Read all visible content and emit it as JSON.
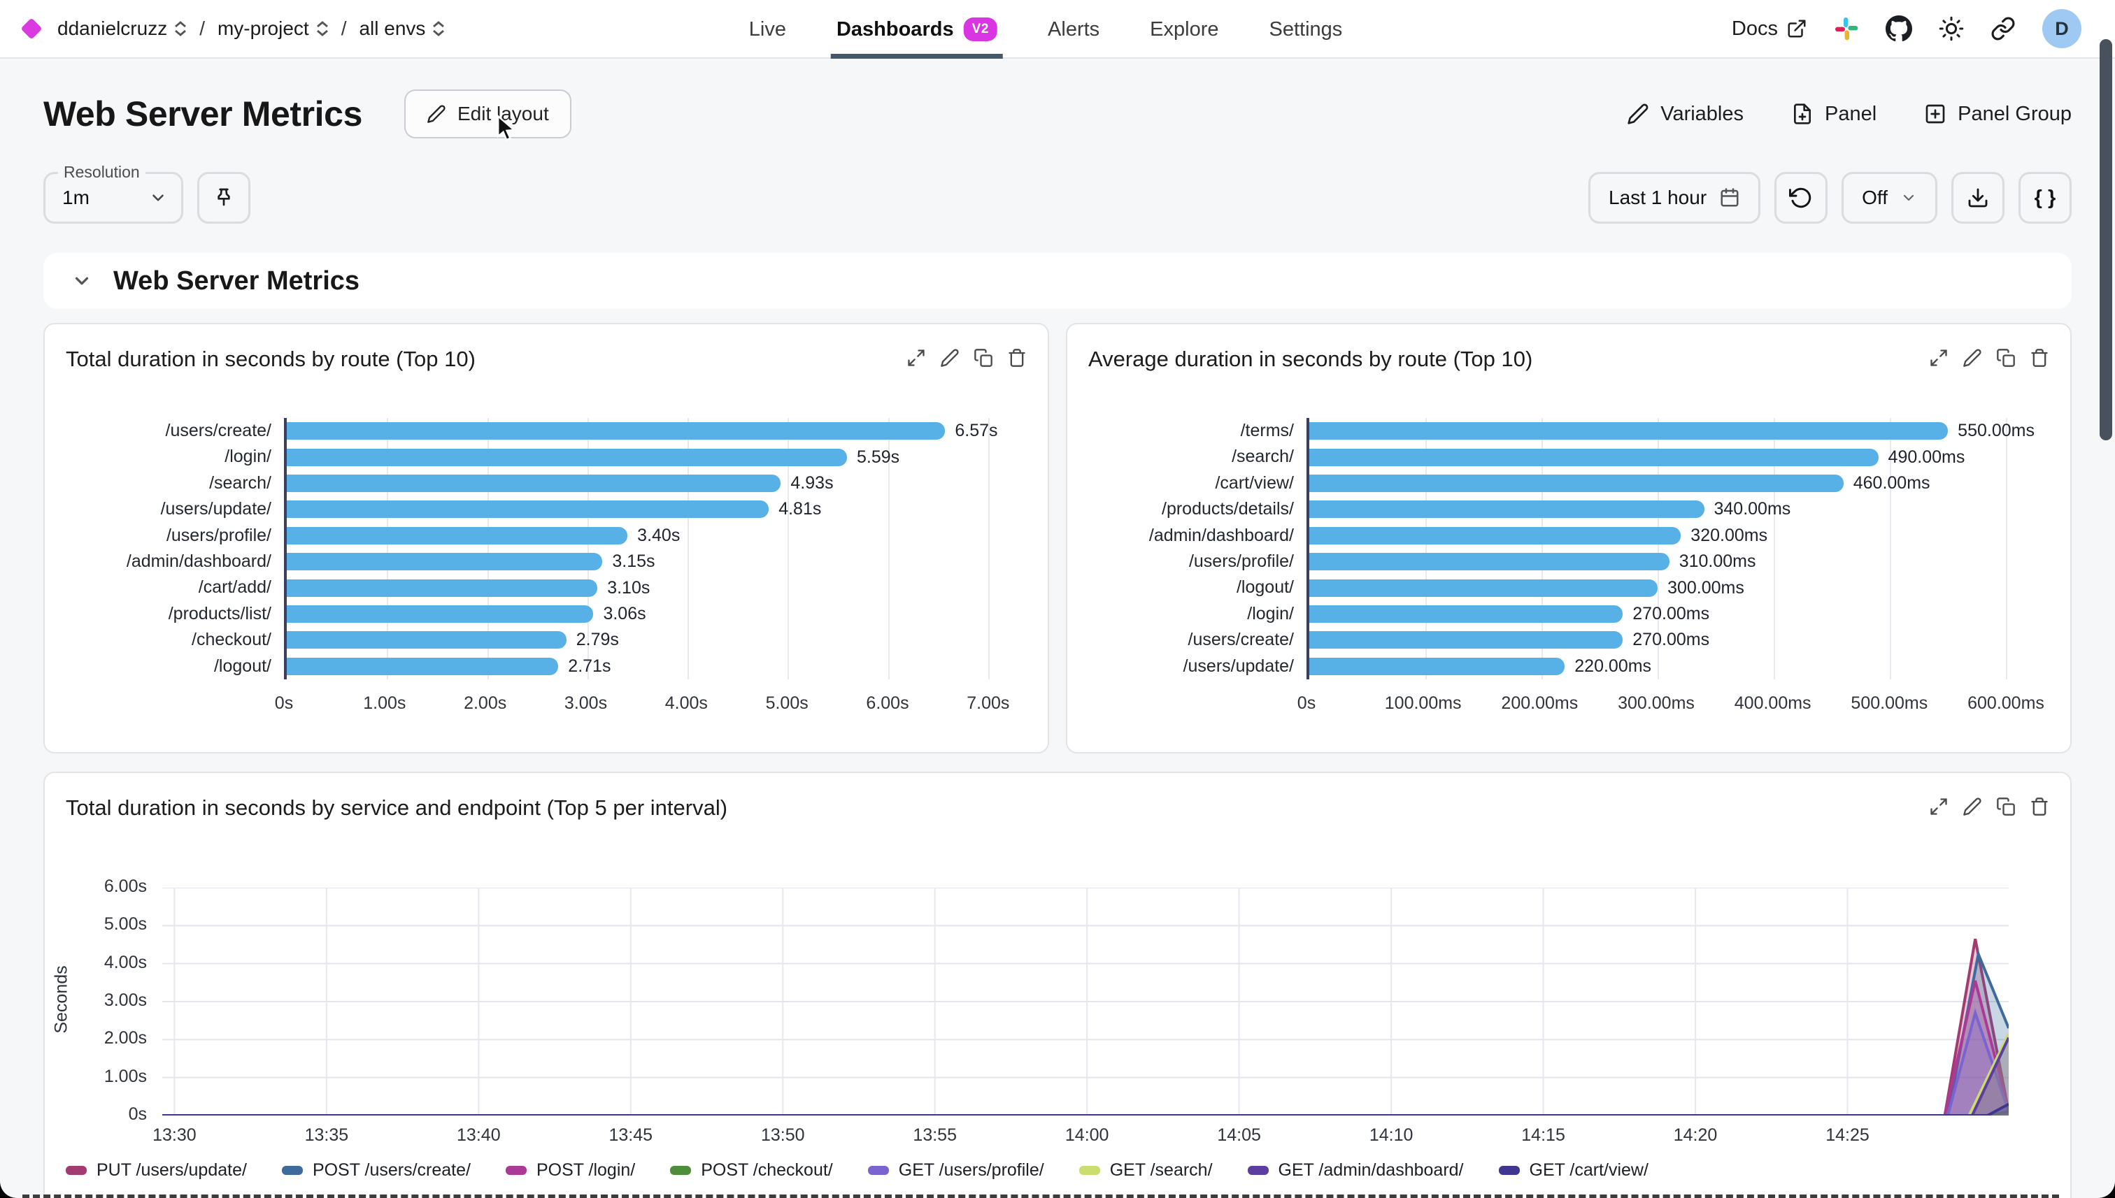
{
  "app": {
    "breadcrumb": {
      "org": "ddanielcruzz",
      "separator": "/",
      "project": "my-project",
      "environment": "all envs"
    },
    "nav": [
      {
        "label": "Live",
        "active": false
      },
      {
        "label": "Dashboards",
        "active": true,
        "badge": "V2"
      },
      {
        "label": "Alerts",
        "active": false
      },
      {
        "label": "Explore",
        "active": false
      },
      {
        "label": "Settings",
        "active": false
      }
    ],
    "topright": {
      "docs_label": "Docs",
      "icons": [
        "external-link",
        "slack",
        "github",
        "sun",
        "link"
      ],
      "avatar_initial": "D"
    }
  },
  "toolbar": {
    "title": "Web Server Metrics",
    "edit_layout": "Edit layout",
    "variables": "Variables",
    "panel": "Panel",
    "panel_group": "Panel Group"
  },
  "filters": {
    "resolution_label": "Resolution",
    "resolution_value": "1m",
    "time_range": "Last 1 hour",
    "refresh_interval": "Off",
    "code_view": "{ }"
  },
  "section": {
    "title": "Web Server Metrics"
  },
  "panel_actions": [
    "expand",
    "edit",
    "duplicate",
    "delete"
  ],
  "chart_data": [
    {
      "type": "bar",
      "orientation": "horizontal",
      "title": "Total duration in seconds by route (Top 10)",
      "categories": [
        "/users/create/",
        "/login/",
        "/search/",
        "/users/update/",
        "/users/profile/",
        "/admin/dashboard/",
        "/cart/add/",
        "/products/list/",
        "/checkout/",
        "/logout/"
      ],
      "values": [
        6.57,
        5.59,
        4.93,
        4.81,
        3.4,
        3.15,
        3.1,
        3.06,
        2.79,
        2.71
      ],
      "value_labels": [
        "6.57s",
        "5.59s",
        "4.93s",
        "4.81s",
        "3.40s",
        "3.15s",
        "3.10s",
        "3.06s",
        "2.79s",
        "2.71s"
      ],
      "xlim": [
        0,
        7.3
      ],
      "x_ticks": {
        "values": [
          0,
          1,
          2,
          3,
          4,
          5,
          6,
          7
        ],
        "labels": [
          "0s",
          "1.00s",
          "2.00s",
          "3.00s",
          "4.00s",
          "5.00s",
          "6.00s",
          "7.00s"
        ]
      },
      "bar_color": "#57b1e7",
      "grid": true,
      "legend": "none"
    },
    {
      "type": "bar",
      "orientation": "horizontal",
      "title": "Average duration in seconds by route (Top 10)",
      "categories": [
        "/terms/",
        "/search/",
        "/cart/view/",
        "/products/details/",
        "/admin/dashboard/",
        "/users/profile/",
        "/logout/",
        "/login/",
        "/users/create/",
        "/users/update/"
      ],
      "values": [
        550,
        490,
        460,
        340,
        320,
        310,
        300,
        270,
        270,
        220
      ],
      "value_labels": [
        "550.00ms",
        "490.00ms",
        "460.00ms",
        "340.00ms",
        "320.00ms",
        "310.00ms",
        "300.00ms",
        "270.00ms",
        "270.00ms",
        "220.00ms"
      ],
      "xlim": [
        0,
        630
      ],
      "x_ticks": {
        "values": [
          0,
          100,
          200,
          300,
          400,
          500,
          600
        ],
        "labels": [
          "0s",
          "100.00ms",
          "200.00ms",
          "300.00ms",
          "400.00ms",
          "500.00ms",
          "600.00ms"
        ]
      },
      "bar_color": "#57b1e7",
      "grid": true,
      "legend": "none"
    },
    {
      "type": "area",
      "title": "Total duration in seconds by service and endpoint (Top 5 per interval)",
      "ylabel": "Seconds",
      "y_domain": [
        0,
        6
      ],
      "x_domain": [
        -0.4,
        60.3
      ],
      "y_ticks": {
        "values": [
          0,
          1,
          2,
          3,
          4,
          5,
          6
        ],
        "labels": [
          "0s",
          "1.00s",
          "2.00s",
          "3.00s",
          "4.00s",
          "5.00s",
          "6.00s"
        ]
      },
      "x_ticks": {
        "values": [
          0,
          5,
          10,
          15,
          20,
          25,
          30,
          35,
          40,
          45,
          50,
          55
        ],
        "labels": [
          "13:30",
          "13:35",
          "13:40",
          "13:45",
          "13:50",
          "13:55",
          "14:00",
          "14:05",
          "14:10",
          "14:15",
          "14:20",
          "14:25"
        ]
      },
      "grid": true,
      "legend": "bottom",
      "x_unit": "minutes-after-13:30",
      "series": [
        {
          "name": "PUT /users/update/",
          "color": "#a23b72",
          "points": [
            [
              -0.4,
              0
            ],
            [
              58.2,
              0
            ],
            [
              59.2,
              4.65
            ],
            [
              60.3,
              0.1
            ]
          ]
        },
        {
          "name": "POST /users/create/",
          "color": "#3e6b9b",
          "points": [
            [
              -0.4,
              0
            ],
            [
              58.3,
              0
            ],
            [
              59.3,
              4.25
            ],
            [
              60.3,
              2.3
            ]
          ]
        },
        {
          "name": "POST /login/",
          "color": "#ab3a96",
          "points": [
            [
              -0.4,
              0
            ],
            [
              58.2,
              0
            ],
            [
              59.2,
              3.55
            ],
            [
              60.3,
              0.15
            ]
          ]
        },
        {
          "name": "POST /checkout/",
          "color": "#4e8d3c",
          "points": [
            [
              -0.4,
              0
            ],
            [
              59.5,
              0
            ],
            [
              60.3,
              0.1
            ]
          ]
        },
        {
          "name": "GET /users/profile/",
          "color": "#7b64cf",
          "points": [
            [
              -0.4,
              0
            ],
            [
              58.3,
              0
            ],
            [
              59.2,
              2.7
            ],
            [
              60.3,
              0.1
            ]
          ]
        },
        {
          "name": "GET /search/",
          "color": "#cbdd70",
          "points": [
            [
              -0.4,
              0
            ],
            [
              59.0,
              0
            ],
            [
              60.3,
              2.15
            ]
          ]
        },
        {
          "name": "GET /admin/dashboard/",
          "color": "#5c3da0",
          "points": [
            [
              -0.4,
              0
            ],
            [
              59.1,
              0
            ],
            [
              60.3,
              2.05
            ]
          ]
        },
        {
          "name": "GET /cart/view/",
          "color": "#41368f",
          "points": [
            [
              -0.4,
              0
            ],
            [
              59.6,
              0
            ],
            [
              60.3,
              0.3
            ]
          ]
        }
      ]
    }
  ]
}
